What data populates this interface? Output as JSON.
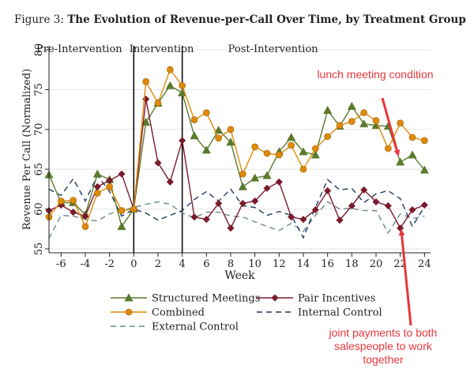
{
  "figure": {
    "number": "Figure 3:",
    "title": "The Evolution of Revenue-per-Call Over Time, by Treatment Group"
  },
  "chart_data": {
    "type": "line",
    "xlabel": "Week",
    "ylabel": "Revenue Per Call (Normalized)",
    "xlim": [
      -7,
      24.5
    ],
    "ylim": [
      54.5,
      80.5
    ],
    "xticks": [
      -6,
      -4,
      -2,
      0,
      2,
      4,
      6,
      8,
      10,
      12,
      14,
      16,
      18,
      20,
      22,
      24
    ],
    "yticks": [
      55,
      60,
      65,
      70,
      75,
      80
    ],
    "grid": true,
    "phase_lines": [
      0,
      4
    ],
    "phases": [
      {
        "label": "Pre-Intervention",
        "x": -4.5
      },
      {
        "label": "Intervention",
        "x": 2.3
      },
      {
        "label": "Post-Intervention",
        "x": 11.5
      }
    ],
    "legend_position": "bottom",
    "series": [
      {
        "name": "Structured Meetings",
        "color": "#5b7a2d",
        "marker": "triangle",
        "dash": "solid",
        "x": [
          -7,
          -6,
          -5,
          -4,
          -3,
          -2,
          -1,
          0,
          1,
          2,
          3,
          4,
          5,
          6,
          7,
          8,
          9,
          10,
          11,
          12,
          13,
          14,
          15,
          16,
          17,
          18,
          19,
          20,
          21,
          22,
          23,
          24
        ],
        "y": [
          64.3,
          60.8,
          60.8,
          59.3,
          64.4,
          63.7,
          57.8,
          60.0,
          70.9,
          73.3,
          75.5,
          74.6,
          69.2,
          67.4,
          69.9,
          68.4,
          62.8,
          63.9,
          64.2,
          67.2,
          69.0,
          67.2,
          66.8,
          72.4,
          70.4,
          72.9,
          70.7,
          70.5,
          70.4,
          65.9,
          66.8,
          64.9
        ]
      },
      {
        "name": "Pair Incentives",
        "color": "#7a1b2b",
        "marker": "diamond",
        "dash": "solid",
        "x": [
          -7,
          -6,
          -5,
          -4,
          -3,
          -2,
          -1,
          0,
          1,
          2,
          3,
          4,
          5,
          6,
          7,
          8,
          9,
          10,
          11,
          12,
          13,
          14,
          15,
          16,
          17,
          18,
          19,
          20,
          21,
          22,
          23,
          24
        ],
        "y": [
          59.8,
          60.5,
          59.6,
          59.1,
          62.8,
          63.6,
          64.4,
          60.0,
          73.8,
          65.8,
          63.4,
          68.6,
          59.0,
          58.7,
          60.7,
          57.6,
          60.7,
          61.0,
          62.6,
          63.4,
          59.0,
          58.7,
          59.9,
          62.3,
          58.6,
          60.4,
          62.4,
          60.9,
          60.4,
          57.6,
          59.9,
          60.5
        ]
      },
      {
        "name": "Combined",
        "color": "#e08a0b",
        "marker": "circle",
        "dash": "solid",
        "x": [
          -7,
          -6,
          -5,
          -4,
          -3,
          -2,
          -1,
          0,
          1,
          2,
          3,
          4,
          5,
          6,
          7,
          8,
          9,
          10,
          11,
          12,
          13,
          14,
          15,
          16,
          17,
          18,
          19,
          20,
          21,
          22,
          23,
          24
        ],
        "y": [
          59.0,
          61.0,
          61.1,
          57.8,
          62.0,
          62.8,
          59.8,
          60.0,
          76.0,
          73.3,
          77.5,
          75.5,
          71.2,
          72.1,
          68.9,
          70.0,
          64.4,
          67.8,
          67.0,
          66.8,
          68.0,
          65.0,
          67.6,
          69.1,
          70.5,
          71.0,
          72.1,
          71.1,
          67.6,
          70.8,
          69.0,
          68.6
        ]
      },
      {
        "name": "Internal Control",
        "color": "#1f3a5f",
        "marker": "none",
        "dash": "7,5",
        "x": [
          -7,
          -6,
          -5,
          -4,
          -3,
          -2,
          -1,
          0,
          1,
          2,
          3,
          4,
          5,
          6,
          7,
          8,
          9,
          10,
          11,
          12,
          13,
          14,
          15,
          16,
          17,
          18,
          19,
          20,
          21,
          22,
          23,
          24
        ],
        "y": [
          62.5,
          61.7,
          63.8,
          61.0,
          64.2,
          62.2,
          59.1,
          60.0,
          59.5,
          58.6,
          59.2,
          59.8,
          61.2,
          62.2,
          61.0,
          62.5,
          60.4,
          60.2,
          59.2,
          59.7,
          59.2,
          56.4,
          60.2,
          63.7,
          62.4,
          62.6,
          60.8,
          61.9,
          62.3,
          61.3,
          57.8,
          60.3
        ]
      },
      {
        "name": "External Control",
        "color": "#6c8a8a",
        "marker": "none",
        "dash": "7,5",
        "x": [
          -7,
          -6,
          -5,
          -4,
          -3,
          -2,
          -1,
          0,
          1,
          2,
          3,
          4,
          5,
          6,
          7,
          8,
          9,
          10,
          11,
          12,
          13,
          14,
          15,
          16,
          17,
          18,
          19,
          20,
          21,
          22,
          23,
          24
        ],
        "y": [
          56.3,
          59.2,
          59.1,
          58.7,
          58.5,
          59.4,
          59.8,
          60.2,
          60.6,
          60.9,
          60.6,
          59.5,
          58.9,
          59.6,
          59.6,
          59.1,
          59.0,
          58.4,
          57.8,
          57.3,
          58.2,
          57.2,
          59.2,
          60.9,
          60.0,
          60.1,
          59.8,
          59.8,
          57.0,
          59.4,
          58.8,
          59.1
        ]
      }
    ]
  },
  "annotations": {
    "lunch_meeting": "lunch meeting condition",
    "joint_payments": "joint payments to both salespeople to work together"
  }
}
